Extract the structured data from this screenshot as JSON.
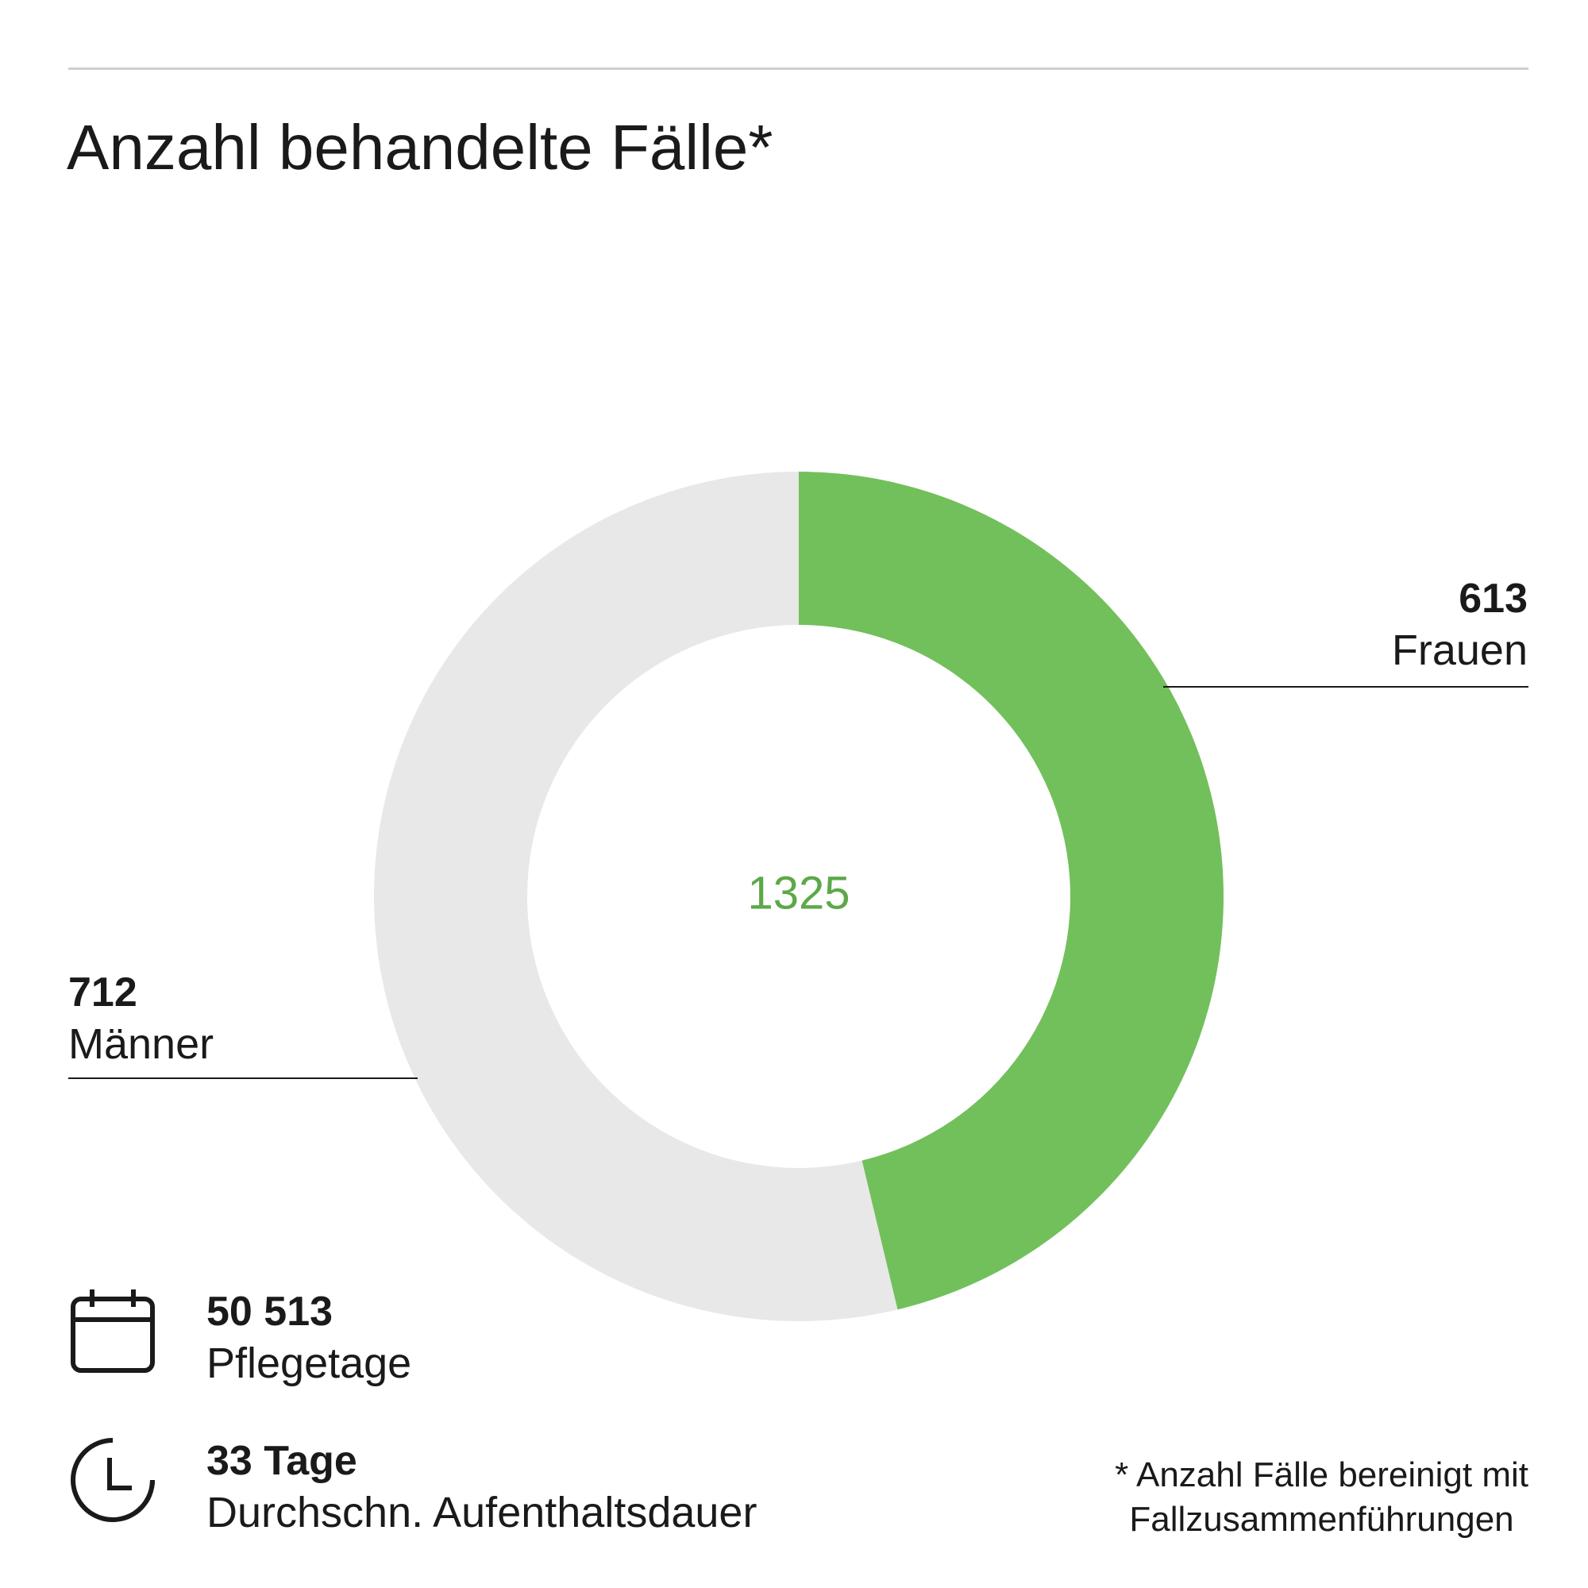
{
  "title": "Anzahl behandelte Fälle*",
  "colors": {
    "accent": "#72c05c",
    "total_text": "#5da84a",
    "rest": "#e8e8e8"
  },
  "chart_data": {
    "type": "pie",
    "title": "Anzahl behandelte Fälle*",
    "total": 1325,
    "total_label": "1325",
    "slices": [
      {
        "label": "Frauen",
        "value": 613,
        "value_label": "613",
        "color": "#72c05c"
      },
      {
        "label": "Männer",
        "value": 712,
        "value_label": "712",
        "color": "#e8e8e8"
      }
    ]
  },
  "stats": [
    {
      "icon": "calendar-icon",
      "value": "50 513",
      "label": "Pflegetage"
    },
    {
      "icon": "clock-icon",
      "value": "33 Tage",
      "label": "Durchschn. Aufenthaltsdauer"
    }
  ],
  "footnote": {
    "line1": "* Anzahl Fälle bereinigt mit",
    "line2": "Fallzusammenführungen"
  }
}
